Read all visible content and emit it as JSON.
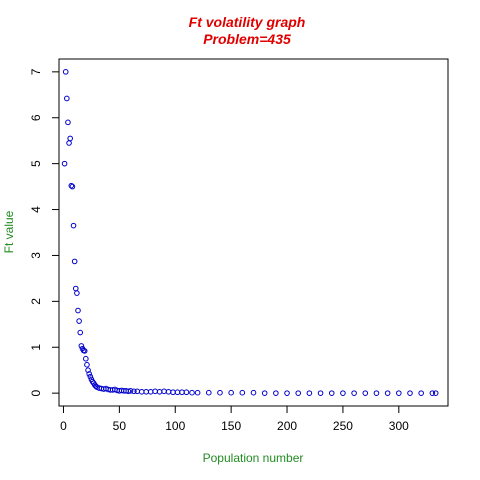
{
  "chart_data": {
    "type": "scatter",
    "title": "Ft volatility graph",
    "subtitle": "Problem=435",
    "xlabel": "Population number",
    "ylabel": "Ft value",
    "xlim": [
      -4,
      344
    ],
    "ylim": [
      -0.28,
      7.28
    ],
    "x_ticks": [
      0,
      50,
      100,
      150,
      200,
      250,
      300
    ],
    "y_ticks": [
      0,
      1,
      2,
      3,
      4,
      5,
      6,
      7
    ],
    "grid": false,
    "legend": "none",
    "colors": {
      "title": "#e00000",
      "axis_title": "#228b22",
      "points": "#0000cc",
      "axes": "#000000"
    },
    "points": {
      "x": [
        1,
        2,
        3,
        4,
        5,
        6,
        7,
        8,
        9,
        10,
        11,
        12,
        13,
        14,
        15,
        16,
        17,
        18,
        19,
        20,
        21,
        22,
        23,
        24,
        25,
        26,
        27,
        28,
        29,
        30,
        32,
        34,
        36,
        38,
        40,
        42,
        44,
        46,
        48,
        50,
        52,
        54,
        56,
        58,
        60,
        63,
        66,
        70,
        74,
        78,
        82,
        86,
        90,
        94,
        98,
        102,
        106,
        110,
        115,
        120,
        130,
        140,
        150,
        160,
        170,
        180,
        190,
        200,
        210,
        220,
        230,
        240,
        250,
        260,
        270,
        280,
        290,
        300,
        310,
        320,
        330,
        333
      ],
      "y": [
        5.0,
        7.0,
        6.42,
        5.9,
        5.45,
        5.55,
        4.52,
        4.5,
        3.65,
        2.87,
        2.28,
        2.18,
        1.8,
        1.57,
        1.32,
        1.03,
        0.97,
        0.93,
        0.92,
        0.75,
        0.62,
        0.5,
        0.42,
        0.36,
        0.3,
        0.25,
        0.22,
        0.18,
        0.15,
        0.13,
        0.11,
        0.1,
        0.09,
        0.1,
        0.08,
        0.07,
        0.07,
        0.08,
        0.06,
        0.05,
        0.06,
        0.05,
        0.05,
        0.04,
        0.05,
        0.04,
        0.04,
        0.03,
        0.03,
        0.03,
        0.04,
        0.03,
        0.04,
        0.03,
        0.02,
        0.02,
        0.02,
        0.02,
        0.01,
        0.01,
        0.01,
        0.01,
        0.01,
        0.01,
        0.01,
        0.0,
        0.0,
        0.0,
        0.0,
        0.0,
        0.0,
        0.0,
        0.0,
        0.0,
        0.0,
        0.0,
        0.0,
        0.0,
        0.0,
        0.0,
        0.0,
        0.0
      ]
    }
  }
}
